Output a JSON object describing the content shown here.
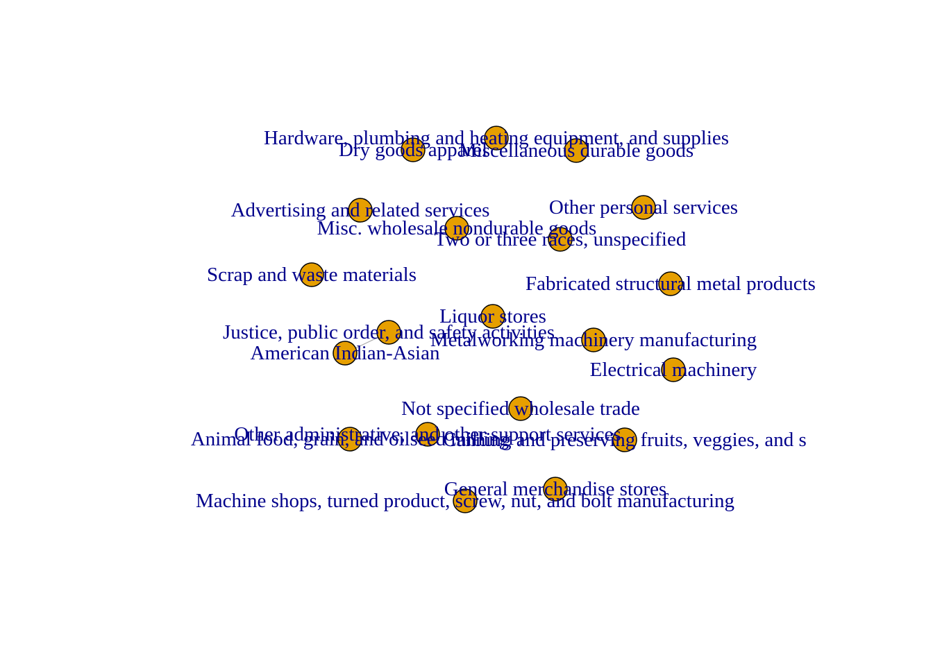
{
  "colors": {
    "node_fill": "#E69F00",
    "node_stroke": "#000000",
    "label": "#00008B",
    "edge": "#A8A8A8"
  },
  "nodes": [
    {
      "id": "hardware",
      "label": "Hardware, plumbing and heating equipment, and supplies"
    },
    {
      "id": "dry-goods",
      "label": "Dry goods apparel"
    },
    {
      "id": "misc-durable",
      "label": "Miscellaneous durable goods"
    },
    {
      "id": "advertising",
      "label": "Advertising and related services"
    },
    {
      "id": "other-personal",
      "label": "Other personal services"
    },
    {
      "id": "misc-nondurable",
      "label": "Misc. wholesale nondurable goods"
    },
    {
      "id": "two-three-races",
      "label": "Two or three races, unspecified"
    },
    {
      "id": "scrap",
      "label": "Scrap and waste materials"
    },
    {
      "id": "fabricated",
      "label": "Fabricated structural metal products"
    },
    {
      "id": "liquor",
      "label": "Liquor stores"
    },
    {
      "id": "justice",
      "label": "Justice, public order, and safety activities"
    },
    {
      "id": "metalworking",
      "label": "Metalworking machinery manufacturing"
    },
    {
      "id": "american-indian",
      "label": "American Indian-Asian"
    },
    {
      "id": "electrical",
      "label": "Electrical machinery"
    },
    {
      "id": "not-specified-wholesale",
      "label": "Not specified wholesale trade"
    },
    {
      "id": "other-admin",
      "label": "Other administrative, and other support services"
    },
    {
      "id": "animal-food",
      "label": "Animal food, grain, and oilseed milling"
    },
    {
      "id": "canning",
      "label": "Canning and preserving fruits, veggies, and s"
    },
    {
      "id": "general-merch",
      "label": "General merchandise stores"
    },
    {
      "id": "machine-shops",
      "label": "Machine shops, turned product, screw, nut, and bolt manufacturing"
    }
  ],
  "edges": [
    {
      "source": "justice",
      "target": "american-indian"
    }
  ]
}
